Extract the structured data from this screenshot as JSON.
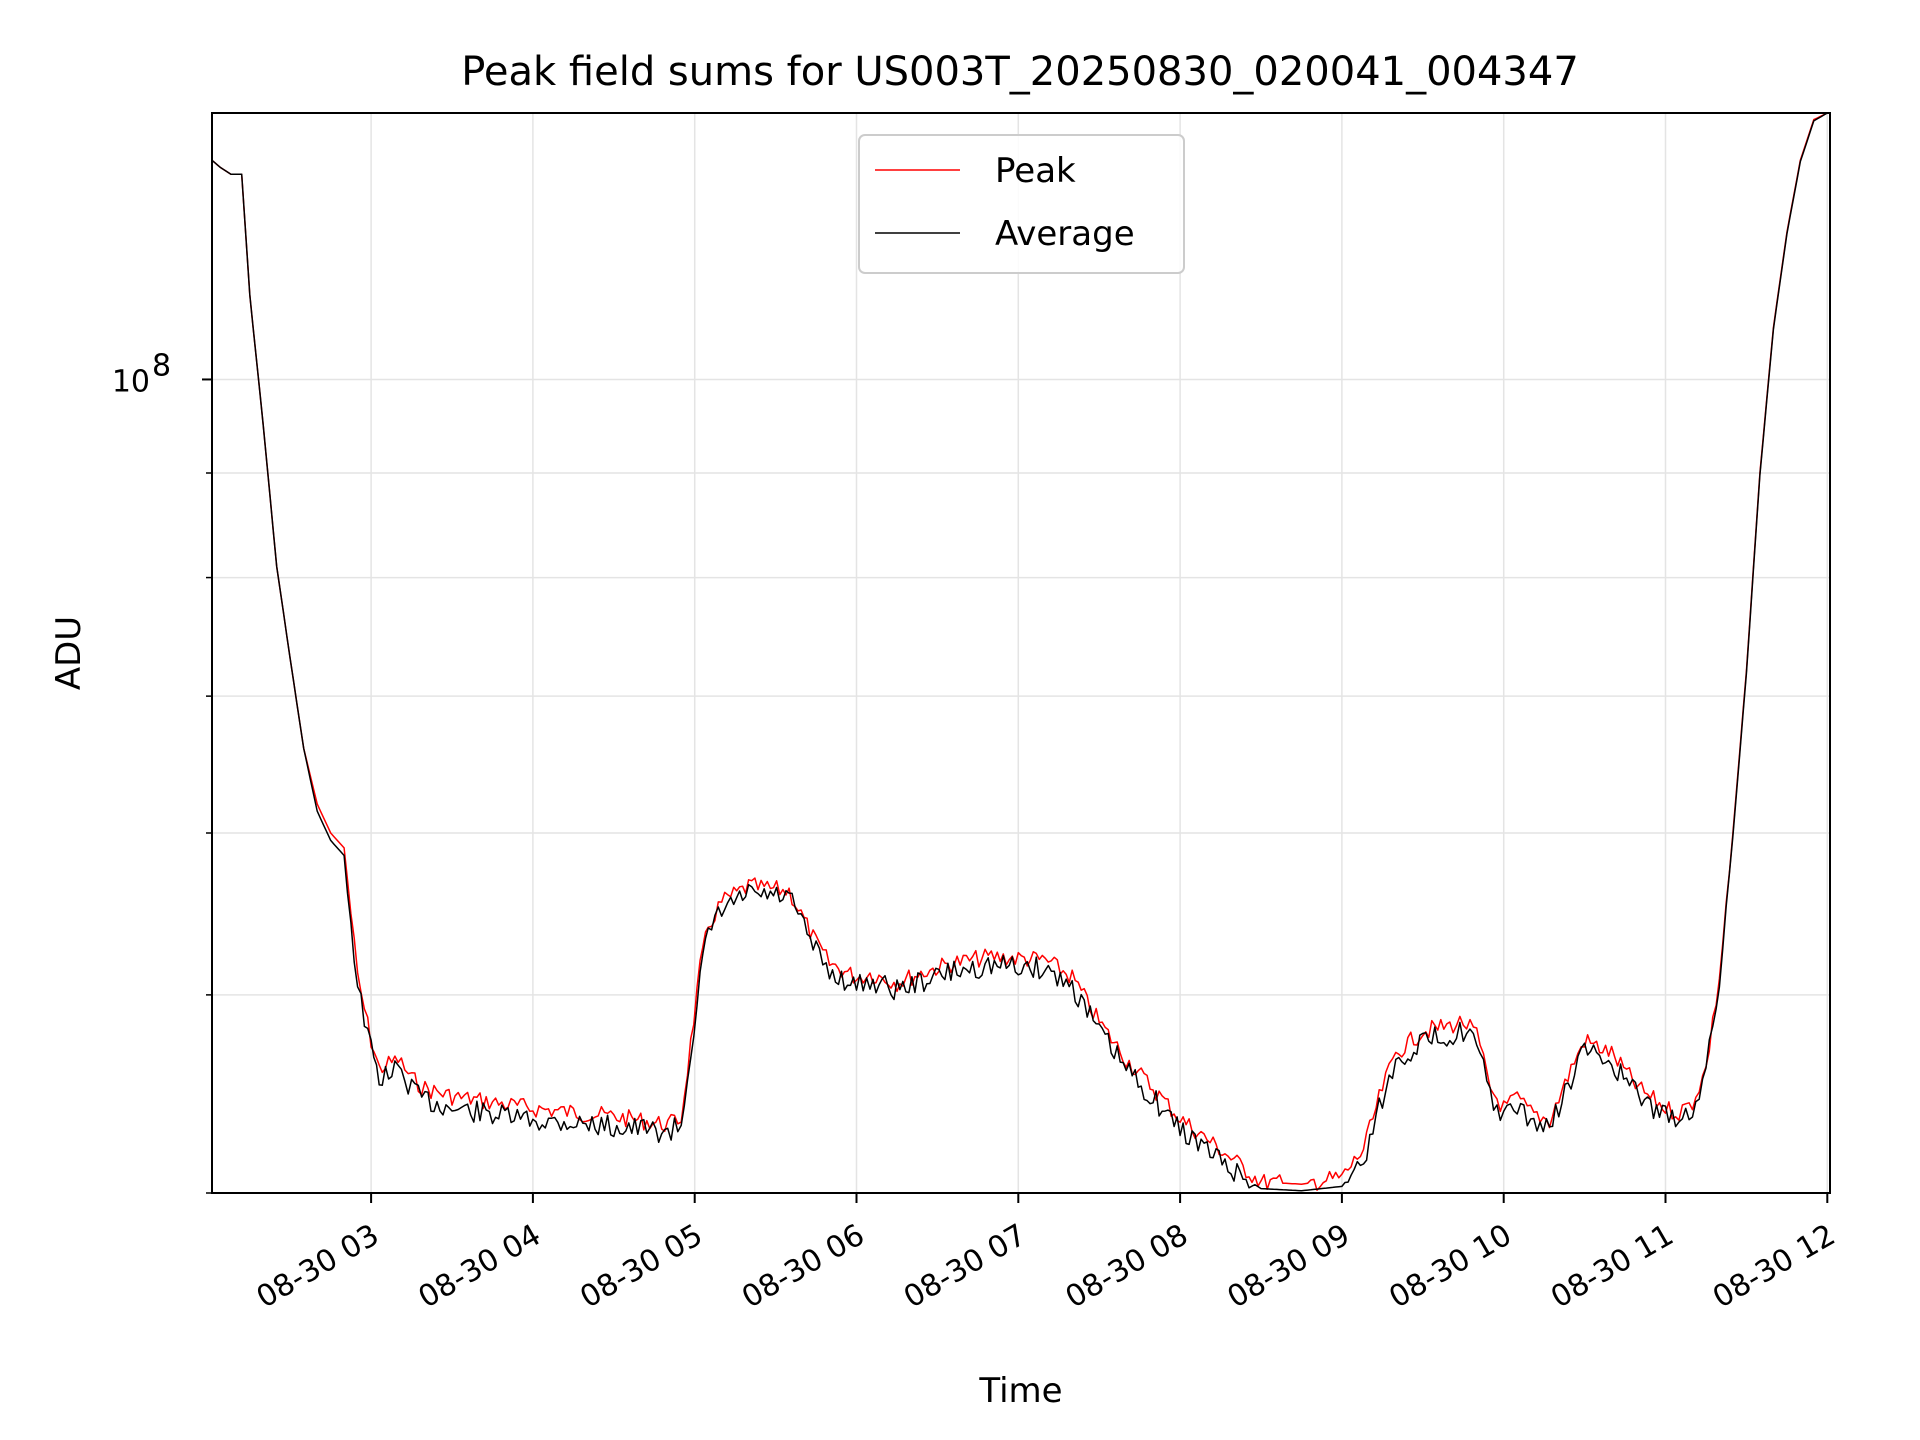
{
  "chart_data": {
    "type": "line",
    "title": "Peak field sums for US003T_20250830_020041_004347",
    "xlabel": "Time",
    "ylabel": "ADU",
    "yscale": "log",
    "ylim": [
      40000000,
      135000000
    ],
    "xlim": [
      "08-30 02:01",
      "08-30 12:01"
    ],
    "x_ticks": [
      "08-30 03",
      "08-30 04",
      "08-30 05",
      "08-30 06",
      "08-30 07",
      "08-30 08",
      "08-30 09",
      "08-30 10",
      "08-30 11",
      "08-30 12"
    ],
    "y_ticks": [
      {
        "value": 100000000,
        "base": "10",
        "exp": "8"
      }
    ],
    "grid": true,
    "legend_position": "upper-center",
    "colors": {
      "peak": "#ff0000",
      "average": "#000000",
      "grid": "#e4e4e4"
    },
    "series": [
      {
        "name": "Peak",
        "x": [
          "08-30 02:01",
          "08-30 02:04",
          "08-30 02:08",
          "08-30 02:12",
          "08-30 02:15",
          "08-30 02:20",
          "08-30 02:25",
          "08-30 02:30",
          "08-30 02:35",
          "08-30 02:40",
          "08-30 02:45",
          "08-30 02:50",
          "08-30 02:55",
          "08-30 03:00",
          "08-30 03:03",
          "08-30 03:10",
          "08-30 03:15",
          "08-30 03:20",
          "08-30 03:30",
          "08-30 03:45",
          "08-30 04:00",
          "08-30 04:15",
          "08-30 04:30",
          "08-30 04:40",
          "08-30 04:50",
          "08-30 04:55",
          "08-30 05:02",
          "08-30 05:05",
          "08-30 05:10",
          "08-30 05:20",
          "08-30 05:35",
          "08-30 05:45",
          "08-30 05:50",
          "08-30 06:00",
          "08-30 06:05",
          "08-30 06:15",
          "08-30 06:25",
          "08-30 06:35",
          "08-30 06:50",
          "08-30 07:10",
          "08-30 07:20",
          "08-30 07:30",
          "08-30 07:40",
          "08-30 07:50",
          "08-30 08:00",
          "08-30 08:10",
          "08-30 08:20",
          "08-30 08:30",
          "08-30 08:45",
          "08-30 09:00",
          "08-30 09:08",
          "08-30 09:15",
          "08-30 09:20",
          "08-30 09:30",
          "08-30 09:40",
          "08-30 09:45",
          "08-30 09:50",
          "08-30 09:55",
          "08-30 10:00",
          "08-30 10:05",
          "08-30 10:10",
          "08-30 10:17",
          "08-30 10:25",
          "08-30 10:30",
          "08-30 10:40",
          "08-30 10:50",
          "08-30 11:00",
          "08-30 11:05",
          "08-30 11:10",
          "08-30 11:15",
          "08-30 11:20",
          "08-30 11:25",
          "08-30 11:30",
          "08-30 11:35",
          "08-30 11:40",
          "08-30 11:45",
          "08-30 11:50",
          "08-30 11:55",
          "08-30 12:00"
        ],
        "values": [
          128000000,
          127000000,
          126000000,
          126000000,
          110000000,
          95000000,
          81000000,
          73000000,
          66000000,
          62000000,
          60000000,
          59000000,
          51000000,
          47500000,
          46000000,
          46500000,
          45500000,
          45000000,
          44600000,
          44300000,
          44000000,
          43800000,
          43600000,
          43400000,
          43200000,
          43500000,
          51500000,
          54000000,
          55500000,
          56500000,
          56200000,
          53000000,
          51800000,
          51000000,
          51200000,
          50700000,
          51300000,
          51800000,
          52200000,
          52000000,
          51000000,
          48500000,
          46500000,
          45000000,
          43500000,
          42500000,
          41500000,
          40500000,
          40400000,
          40700000,
          42000000,
          45000000,
          46800000,
          48000000,
          48300000,
          48500000,
          47800000,
          45000000,
          44000000,
          44500000,
          43800000,
          43400000,
          46000000,
          47500000,
          46800000,
          45000000,
          44000000,
          43800000,
          44300000,
          46000000,
          51000000,
          60000000,
          72000000,
          90000000,
          106000000,
          118000000,
          128000000,
          134000000,
          136000000
        ]
      },
      {
        "name": "Average",
        "x": [
          "08-30 02:01",
          "08-30 02:04",
          "08-30 02:08",
          "08-30 02:12",
          "08-30 02:15",
          "08-30 02:20",
          "08-30 02:25",
          "08-30 02:30",
          "08-30 02:35",
          "08-30 02:40",
          "08-30 02:45",
          "08-30 02:50",
          "08-30 02:55",
          "08-30 03:00",
          "08-30 03:03",
          "08-30 03:10",
          "08-30 03:15",
          "08-30 03:20",
          "08-30 03:30",
          "08-30 03:45",
          "08-30 04:00",
          "08-30 04:15",
          "08-30 04:30",
          "08-30 04:40",
          "08-30 04:50",
          "08-30 04:55",
          "08-30 05:02",
          "08-30 05:05",
          "08-30 05:10",
          "08-30 05:20",
          "08-30 05:35",
          "08-30 05:45",
          "08-30 05:50",
          "08-30 06:00",
          "08-30 06:05",
          "08-30 06:15",
          "08-30 06:25",
          "08-30 06:35",
          "08-30 06:50",
          "08-30 07:10",
          "08-30 07:20",
          "08-30 07:30",
          "08-30 07:40",
          "08-30 07:50",
          "08-30 08:00",
          "08-30 08:10",
          "08-30 08:20",
          "08-30 08:30",
          "08-30 08:45",
          "08-30 09:00",
          "08-30 09:08",
          "08-30 09:15",
          "08-30 09:20",
          "08-30 09:30",
          "08-30 09:40",
          "08-30 09:45",
          "08-30 09:50",
          "08-30 09:55",
          "08-30 10:00",
          "08-30 10:05",
          "08-30 10:10",
          "08-30 10:17",
          "08-30 10:25",
          "08-30 10:30",
          "08-30 10:40",
          "08-30 10:50",
          "08-30 11:00",
          "08-30 11:05",
          "08-30 11:10",
          "08-30 11:15",
          "08-30 11:20",
          "08-30 11:25",
          "08-30 11:30",
          "08-30 11:35",
          "08-30 11:40",
          "08-30 11:45",
          "08-30 11:50",
          "08-30 11:55",
          "08-30 12:00"
        ],
        "values": [
          128000000,
          127000000,
          126000000,
          126000000,
          110000000,
          95000000,
          81000000,
          73000000,
          66000000,
          61500000,
          59500000,
          58500000,
          50500000,
          47000000,
          45500000,
          46000000,
          45000000,
          44400000,
          44000000,
          43700000,
          43400000,
          43300000,
          43100000,
          43000000,
          42800000,
          43200000,
          51000000,
          53500000,
          55000000,
          56000000,
          55800000,
          52500000,
          51300000,
          50500000,
          50800000,
          50300000,
          50800000,
          51300000,
          51700000,
          51500000,
          50500000,
          48000000,
          46000000,
          44500000,
          43000000,
          42000000,
          41000000,
          40200000,
          40100000,
          40300000,
          41500000,
          44500000,
          46300000,
          47500000,
          47800000,
          48000000,
          47300000,
          44600000,
          43600000,
          44000000,
          43400000,
          43000000,
          45500000,
          47000000,
          46300000,
          44600000,
          43600000,
          43500000,
          44000000,
          45800000,
          50800000,
          59800000,
          71800000,
          89800000,
          105800000,
          117800000,
          127800000,
          133800000,
          136000000
        ]
      }
    ]
  }
}
